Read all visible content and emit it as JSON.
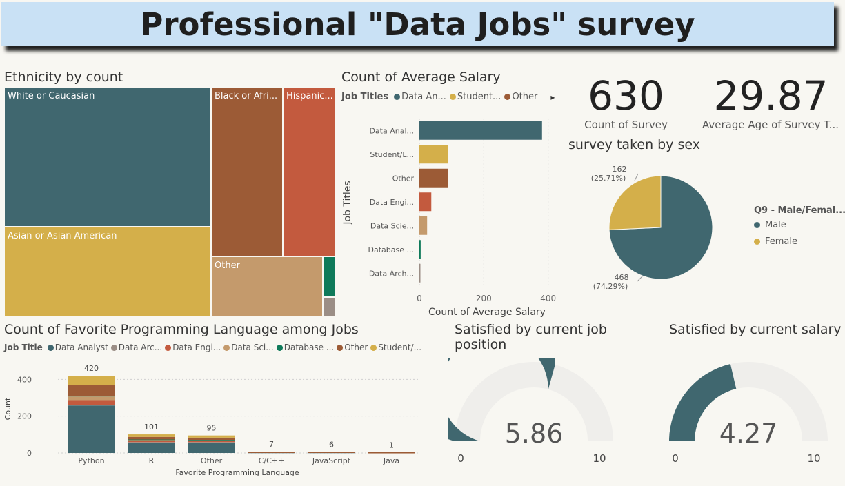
{
  "page_title": "Professional \"Data Jobs\" survey",
  "colors": {
    "teal": "#40676f",
    "gold": "#d4af4a",
    "brown": "#9c5b36",
    "rust": "#c35a3e",
    "tan": "#c49a6c",
    "green": "#0f7a5a",
    "grey": "#9b8e86",
    "gauge_bg": "#efeeeb"
  },
  "treemap": {
    "title": "Ethnicity by count",
    "tiles": [
      {
        "label": "White or Caucasian"
      },
      {
        "label": "Asian or Asian American"
      },
      {
        "label": "Black or Afri..."
      },
      {
        "label": "Hispanic..."
      },
      {
        "label": "Other"
      }
    ]
  },
  "salary_chart": {
    "title": "Count of Average Salary",
    "legend_title": "Job Titles",
    "legend": [
      "Data An...",
      "Student...",
      "Other"
    ],
    "more_icon": "chevron-right-icon",
    "more_glyph": "▸",
    "chart_data": {
      "type": "bar",
      "orientation": "horizontal",
      "categories": [
        "Data Anal...",
        "Student/L...",
        "Other",
        "Data Engi...",
        "Data Scie...",
        "Database ...",
        "Data Arch..."
      ],
      "values": [
        381,
        90,
        88,
        37,
        24,
        4,
        2
      ],
      "colors": [
        "#40676f",
        "#d4af4a",
        "#9c5b36",
        "#c35a3e",
        "#c49a6c",
        "#0f7a5a",
        "#9b8e86"
      ],
      "xlabel": "Count of Average Salary",
      "ylabel": "Job Titles",
      "xlim": [
        0,
        420
      ],
      "xticks": [
        0,
        200,
        400
      ]
    }
  },
  "kpis": [
    {
      "value": "630",
      "label": "Count of Survey"
    },
    {
      "value": "29.87",
      "label": "Average Age of Survey T..."
    }
  ],
  "pie": {
    "title": "survey taken by sex",
    "legend_title": "Q9 - Male/Femal...",
    "chart_data": {
      "type": "pie",
      "labels": [
        "Male",
        "Female"
      ],
      "values": [
        468,
        162
      ],
      "percent_labels": [
        "(74.29%)",
        "(25.71%)"
      ],
      "colors": [
        "#40676f",
        "#d4af4a"
      ]
    }
  },
  "lang_chart": {
    "title": "Count of Favorite Programming Language among Jobs",
    "legend_title": "Job Title",
    "legend": [
      {
        "label": "Data Analyst",
        "color": "#40676f"
      },
      {
        "label": "Data Arc...",
        "color": "#9b8e86"
      },
      {
        "label": "Data Engi...",
        "color": "#c35a3e"
      },
      {
        "label": "Data Sci...",
        "color": "#c49a6c"
      },
      {
        "label": "Database ...",
        "color": "#0f7a5a"
      },
      {
        "label": "Other",
        "color": "#9c5b36"
      },
      {
        "label": "Student/...",
        "color": "#d4af4a"
      }
    ],
    "chart_data": {
      "type": "bar",
      "stacked": true,
      "categories": [
        "Python",
        "R",
        "Other",
        "C/C++",
        "JavaScript",
        "Java"
      ],
      "totals": [
        420,
        101,
        95,
        7,
        6,
        1
      ],
      "series": [
        {
          "values": [
            258,
            58,
            58,
            2,
            2,
            0
          ],
          "color": "#40676f"
        },
        {
          "values": [
            3,
            1,
            1,
            0,
            0,
            0
          ],
          "color": "#9b8e86"
        },
        {
          "values": [
            26,
            7,
            7,
            0,
            1,
            0
          ],
          "color": "#c35a3e"
        },
        {
          "values": [
            20,
            6,
            4,
            1,
            1,
            0
          ],
          "color": "#c49a6c"
        },
        {
          "values": [
            3,
            1,
            1,
            0,
            0,
            0
          ],
          "color": "#0f7a5a"
        },
        {
          "values": [
            58,
            14,
            12,
            4,
            2,
            1
          ],
          "color": "#9c5b36"
        },
        {
          "values": [
            52,
            14,
            12,
            0,
            0,
            0
          ],
          "color": "#d4af4a"
        }
      ],
      "xlabel": "Favorite Programming Language",
      "ylabel": "Count",
      "ylim": [
        0,
        450
      ],
      "yticks": [
        0,
        200,
        400
      ]
    }
  },
  "gauges": [
    {
      "title_line1": "Satisfied by current job",
      "title_line2": "position",
      "value": 5.86,
      "value_text": "5.86",
      "min": "0",
      "max": "10"
    },
    {
      "title_line1": "Satisfied by current salary",
      "title_line2": "",
      "value": 4.27,
      "value_text": "4.27",
      "min": "0",
      "max": "10"
    }
  ]
}
